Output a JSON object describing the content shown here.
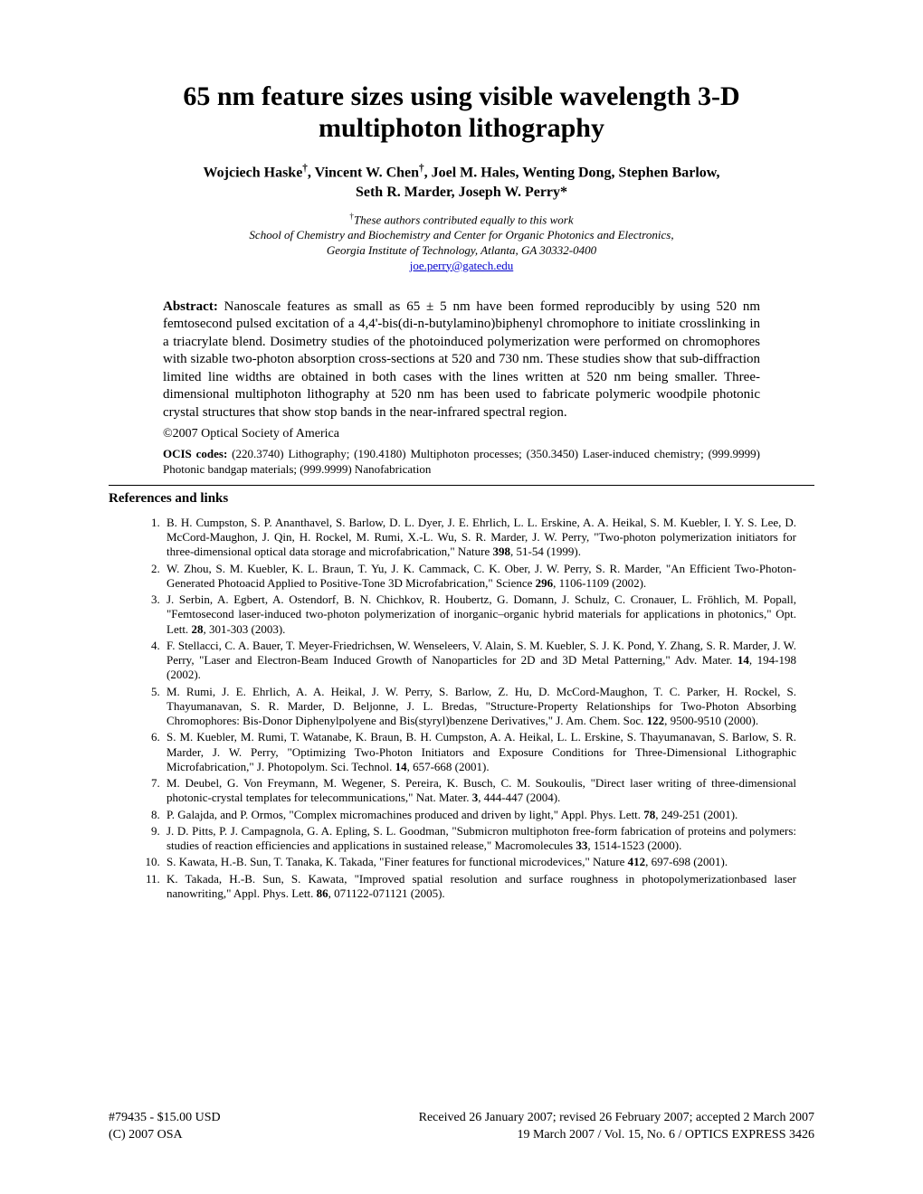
{
  "title": "65 nm feature sizes using visible wavelength 3-D multiphoton lithography",
  "authors_line1_parts": [
    "Wojciech Haske",
    "†",
    ", Vincent W. Chen",
    "†",
    ", Joel M. Hales, Wenting Dong, Stephen Barlow,"
  ],
  "authors_line2": "Seth R. Marder, Joseph W. Perry*",
  "contrib_dagger": "†",
  "contrib_text": "These authors contributed equally to this work",
  "affil_line1": "School of Chemistry and Biochemistry and Center for Organic Photonics and Electronics,",
  "affil_line2": "Georgia Institute of Technology, Atlanta, GA  30332-0400",
  "email": "joe.perry@gatech.edu",
  "abstract_label": "Abstract:",
  "abstract_body": "  Nanoscale features as small as 65 ± 5 nm have been formed reproducibly by using 520 nm femtosecond pulsed excitation of a 4,4'-bis(di-n-butylamino)biphenyl chromophore to initiate crosslinking in a triacrylate blend.  Dosimetry studies of the photoinduced polymerization were performed on chromophores with sizable two-photon absorption cross-sections at 520 and 730 nm.  These studies show that sub-diffraction limited line widths are obtained in both cases with the lines written at 520 nm being smaller.  Three-dimensional multiphoton lithography at 520 nm has been used to fabricate polymeric woodpile photonic crystal structures that show stop bands in the near-infrared spectral region.",
  "copyright": "©2007 Optical Society of America",
  "ocis_label": "OCIS codes:",
  "ocis_body": " (220.3740) Lithography; (190.4180) Multiphoton processes; (350.3450) Laser-induced chemistry; (999.9999) Photonic bandgap materials; (999.9999) Nanofabrication",
  "references_heading": "References and links",
  "references": [
    {
      "pre": "B. H. Cumpston, S. P. Ananthavel, S. Barlow, D. L. Dyer, J. E. Ehrlich, L. L. Erskine, A. A. Heikal, S. M. Kuebler, I. Y. S. Lee, D. McCord-Maughon, J. Qin, H. Rockel, M. Rumi, X.-L. Wu, S. R. Marder, J. W. Perry, \"Two-photon polymerization initiators for three-dimensional optical data storage and microfabrication,\" Nature ",
      "vol": "398",
      "post": ", 51-54 (1999)."
    },
    {
      "pre": "W. Zhou, S. M. Kuebler, K. L. Braun, T. Yu, J. K. Cammack, C. K. Ober, J. W. Perry, S. R. Marder, \"An Efficient Two-Photon-Generated Photoacid Applied to Positive-Tone 3D Microfabrication,\" Science ",
      "vol": "296",
      "post": ", 1106-1109 (2002)."
    },
    {
      "pre": "J. Serbin, A. Egbert, A. Ostendorf, B. N. Chichkov, R. Houbertz, G. Domann, J. Schulz, C. Cronauer, L. Fröhlich, M. Popall, \"Femtosecond laser-induced two-photon polymerization of inorganic–organic hybrid materials for applications in photonics,\" Opt. Lett. ",
      "vol": "28",
      "post": ", 301-303 (2003)."
    },
    {
      "pre": "F. Stellacci, C. A. Bauer, T. Meyer-Friedrichsen, W. Wenseleers, V. Alain, S. M. Kuebler, S. J. K. Pond, Y. Zhang, S. R. Marder, J. W. Perry, \"Laser and Electron-Beam Induced Growth of Nanoparticles for 2D and 3D Metal Patterning,\" Adv. Mater. ",
      "vol": "14",
      "post": ", 194-198 (2002)."
    },
    {
      "pre": "M. Rumi, J. E. Ehrlich, A. A. Heikal, J. W. Perry, S. Barlow, Z. Hu, D. McCord-Maughon, T. C. Parker, H. Rockel, S. Thayumanavan, S. R. Marder, D. Beljonne, J. L. Bredas, \"Structure-Property Relationships for Two-Photon Absorbing Chromophores: Bis-Donor Diphenylpolyene and Bis(styryl)benzene Derivatives,\" J. Am. Chem. Soc. ",
      "vol": "122",
      "post": ", 9500-9510 (2000)."
    },
    {
      "pre": "S. M. Kuebler, M. Rumi, T. Watanabe, K. Braun, B. H. Cumpston, A. A. Heikal, L. L. Erskine, S. Thayumanavan, S. Barlow, S. R. Marder, J. W. Perry, \"Optimizing Two-Photon Initiators and Exposure Conditions for Three-Dimensional Lithographic Microfabrication,\" J. Photopolym. Sci. Technol. ",
      "vol": "14",
      "post": ", 657-668 (2001)."
    },
    {
      "pre": "M. Deubel, G. Von Freymann, M. Wegener, S. Pereira, K. Busch, C. M. Soukoulis, \"Direct laser writing of three-dimensional photonic-crystal templates for telecommunications,\" Nat. Mater. ",
      "vol": "3",
      "post": ", 444-447 (2004)."
    },
    {
      "pre": "P. Galajda, and P. Ormos, \"Complex micromachines produced and driven by light,\" Appl. Phys. Lett. ",
      "vol": "78",
      "post": ", 249-251 (2001)."
    },
    {
      "pre": "J. D. Pitts, P. J. Campagnola, G. A. Epling, S. L. Goodman, \"Submicron multiphoton free-form fabrication of proteins and polymers: studies of reaction efficiencies and applications in sustained release,\" Macromolecules ",
      "vol": "33",
      "post": ", 1514-1523 (2000)."
    },
    {
      "pre": "S. Kawata, H.-B. Sun, T. Tanaka, K. Takada, \"Finer features for functional microdevices,\" Nature ",
      "vol": "412",
      "post": ", 697-698 (2001)."
    },
    {
      "pre": "K. Takada, H.-B. Sun, S. Kawata, \"Improved spatial resolution and surface roughness in photopolymerizationbased laser nanowriting,\" Appl. Phys. Lett. ",
      "vol": "86",
      "post": ", 071122-071121 (2005)."
    }
  ],
  "footer": {
    "l1_left": "#79435 - $15.00 USD",
    "l1_right": "Received 26 January 2007; revised 26 February 2007; accepted 2 March 2007",
    "l2_left": "(C) 2007 OSA",
    "l2_right": "19 March 2007 / Vol. 15,  No. 6 / OPTICS EXPRESS  3426"
  }
}
